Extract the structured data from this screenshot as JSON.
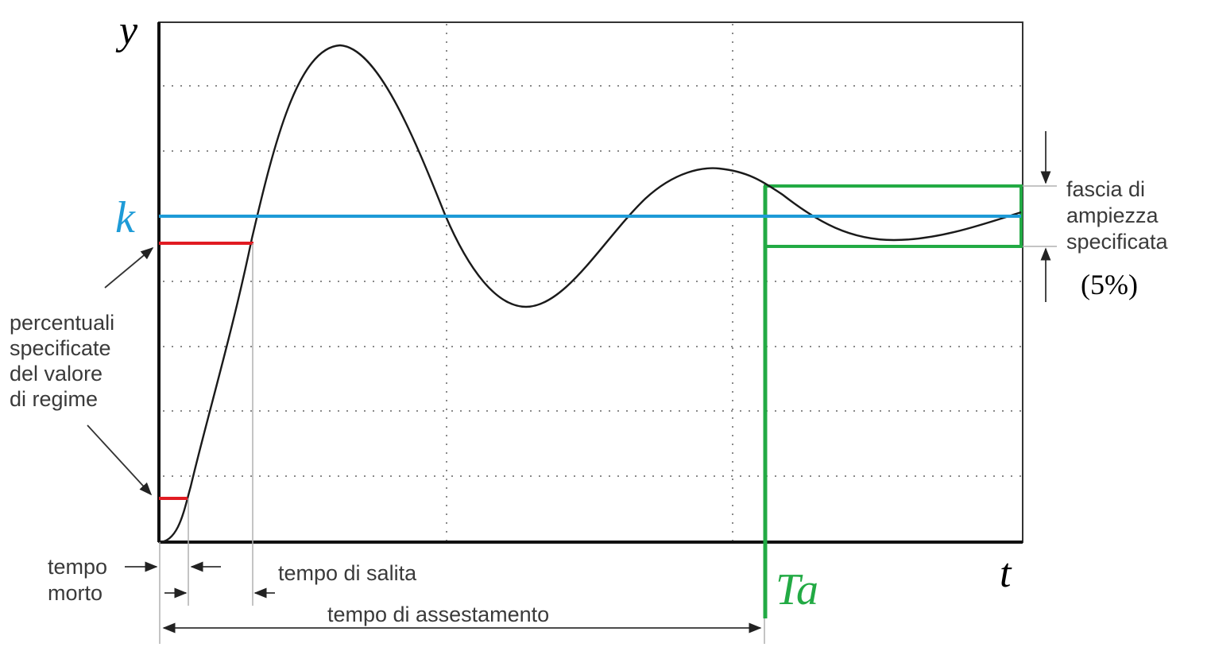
{
  "axes": {
    "y_label": "y",
    "x_label": "t"
  },
  "levels": {
    "k_label": "k",
    "ta_label": "Ta"
  },
  "annotations": {
    "band_line1": "fascia di",
    "band_line2": "ampiezza",
    "band_line3": "specificata",
    "band_percent": "(5%)",
    "percent_line1": "percentuali",
    "percent_line2": "specificate",
    "percent_line3": "del valore",
    "percent_line4": "di regime",
    "dead_time_line1": "tempo",
    "dead_time_line2": "morto",
    "rise_time": "tempo di salita",
    "settling_time": "tempo di assestamento"
  },
  "colors": {
    "k_line": "#1e9bd7",
    "band": "#22aa44",
    "thresholds": "#e11b22",
    "curve": "#1a1a1a"
  },
  "chart_data": {
    "type": "line",
    "description_source": "step response of a second-order underdamped system",
    "ylim": [
      0,
      2
    ],
    "xlim": [
      0,
      1
    ],
    "steady_state_k": 1.0,
    "band_percent": 5,
    "thresholds": [
      0.1,
      0.9
    ],
    "series": [
      {
        "values": [
          [
            0.0,
            0.0
          ],
          [
            0.03,
            0.1
          ],
          [
            0.105,
            0.9
          ],
          [
            0.205,
            1.55
          ],
          [
            0.33,
            0.95
          ],
          [
            0.42,
            0.55
          ],
          [
            0.56,
            0.95
          ],
          [
            0.645,
            1.17
          ],
          [
            0.73,
            1.05
          ],
          [
            0.85,
            0.9
          ],
          [
            1.0,
            1.0
          ]
        ]
      }
    ]
  }
}
